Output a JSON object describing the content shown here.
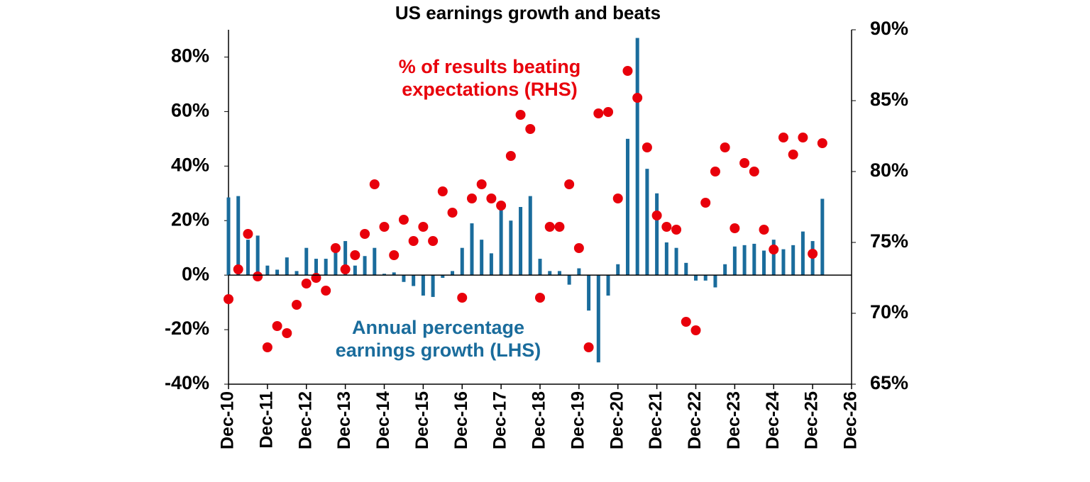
{
  "chart_data": {
    "type": "bar-scatter",
    "title": "US earnings growth and beats",
    "x": [
      2010.92,
      2011.17,
      2011.42,
      2011.67,
      2011.92,
      2012.17,
      2012.42,
      2012.67,
      2012.92,
      2013.17,
      2013.42,
      2013.67,
      2013.92,
      2014.17,
      2014.42,
      2014.67,
      2014.92,
      2015.17,
      2015.42,
      2015.67,
      2015.92,
      2016.17,
      2016.42,
      2016.67,
      2016.92,
      2017.17,
      2017.42,
      2017.67,
      2017.92,
      2018.17,
      2018.42,
      2018.67,
      2018.92,
      2019.17,
      2019.42,
      2019.67,
      2019.92,
      2020.17,
      2020.42,
      2020.67,
      2020.92,
      2021.17,
      2021.42,
      2021.67,
      2021.92,
      2022.17,
      2022.42,
      2022.67,
      2022.92,
      2023.17,
      2023.42,
      2023.67,
      2023.92,
      2024.17,
      2024.42,
      2024.67,
      2024.92,
      2025.17,
      2025.42,
      2025.67,
      2025.92,
      2026.17
    ],
    "series": [
      {
        "name": "Annual percentage earnings growth (LHS)",
        "color": "#1a6c9c",
        "axis": "y",
        "values": [
          28.5,
          29,
          13,
          14.5,
          3.5,
          2,
          6.5,
          1.5,
          10,
          6,
          6,
          9,
          12.5,
          3.5,
          7,
          10,
          0.5,
          1,
          -2.5,
          -4,
          -7.5,
          -8,
          -1,
          1.5,
          10,
          19,
          13,
          8,
          24,
          20,
          25,
          29,
          6,
          1.5,
          1.5,
          -3.5,
          2.5,
          -13,
          -32,
          -7.5,
          4,
          50,
          87,
          39,
          30,
          12,
          10,
          4.5,
          -2,
          -2,
          -4.5,
          4,
          10.5,
          11,
          11.5,
          9,
          13,
          9.5,
          11,
          16,
          12.5,
          28
        ]
      },
      {
        "name": "% of results beating expectations (RHS)",
        "color": "#e8000b",
        "axis": "y2",
        "values": [
          71,
          73.1,
          75.6,
          72.6,
          67.6,
          69.1,
          68.6,
          70.6,
          72.1,
          72.5,
          71.6,
          74.6,
          73.1,
          74.1,
          75.6,
          79.1,
          76.1,
          74.1,
          76.6,
          75.1,
          76.1,
          75.1,
          78.6,
          77.1,
          71.1,
          78.1,
          79.1,
          78.1,
          77.6,
          81.1,
          84,
          83,
          71.1,
          76.1,
          76.1,
          79.1,
          74.6,
          67.6,
          84.1,
          84.2,
          78.1,
          87.1,
          85.2,
          81.7,
          76.9,
          76.1,
          75.9,
          69.4,
          68.8,
          77.8,
          80,
          81.7,
          76,
          80.6,
          80,
          75.9,
          74.5,
          82.4,
          81.2,
          82.4,
          74.2,
          82
        ]
      }
    ],
    "xlim": [
      2010.92,
      2026.92
    ],
    "xticks": [
      {
        "value": 2010.92,
        "label": "Dec-10"
      },
      {
        "value": 2011.92,
        "label": "Dec-11"
      },
      {
        "value": 2012.92,
        "label": "Dec-12"
      },
      {
        "value": 2013.92,
        "label": "Dec-13"
      },
      {
        "value": 2014.92,
        "label": "Dec-14"
      },
      {
        "value": 2015.92,
        "label": "Dec-15"
      },
      {
        "value": 2016.92,
        "label": "Dec-16"
      },
      {
        "value": 2017.92,
        "label": "Dec-17"
      },
      {
        "value": 2018.92,
        "label": "Dec-18"
      },
      {
        "value": 2019.92,
        "label": "Dec-19"
      },
      {
        "value": 2020.92,
        "label": "Dec-20"
      },
      {
        "value": 2021.92,
        "label": "Dec-21"
      },
      {
        "value": 2022.92,
        "label": "Dec-22"
      },
      {
        "value": 2023.92,
        "label": "Dec-23"
      },
      {
        "value": 2024.92,
        "label": "Dec-24"
      },
      {
        "value": 2025.92,
        "label": "Dec-25"
      },
      {
        "value": 2026.92,
        "label": "Dec-26"
      }
    ],
    "ylim": [
      -40,
      90
    ],
    "yticks": [
      {
        "value": -40,
        "label": "-40%"
      },
      {
        "value": -20,
        "label": "-20%"
      },
      {
        "value": 0,
        "label": "0%"
      },
      {
        "value": 20,
        "label": "20%"
      },
      {
        "value": 40,
        "label": "40%"
      },
      {
        "value": 60,
        "label": "60%"
      },
      {
        "value": 80,
        "label": "80%"
      }
    ],
    "y2lim": [
      65,
      90
    ],
    "y2ticks": [
      {
        "value": 65,
        "label": "65%"
      },
      {
        "value": 70,
        "label": "70%"
      },
      {
        "value": 75,
        "label": "75%"
      },
      {
        "value": 80,
        "label": "80%"
      },
      {
        "value": 85,
        "label": "85%"
      },
      {
        "value": 90,
        "label": "90%"
      }
    ],
    "grid": false
  }
}
